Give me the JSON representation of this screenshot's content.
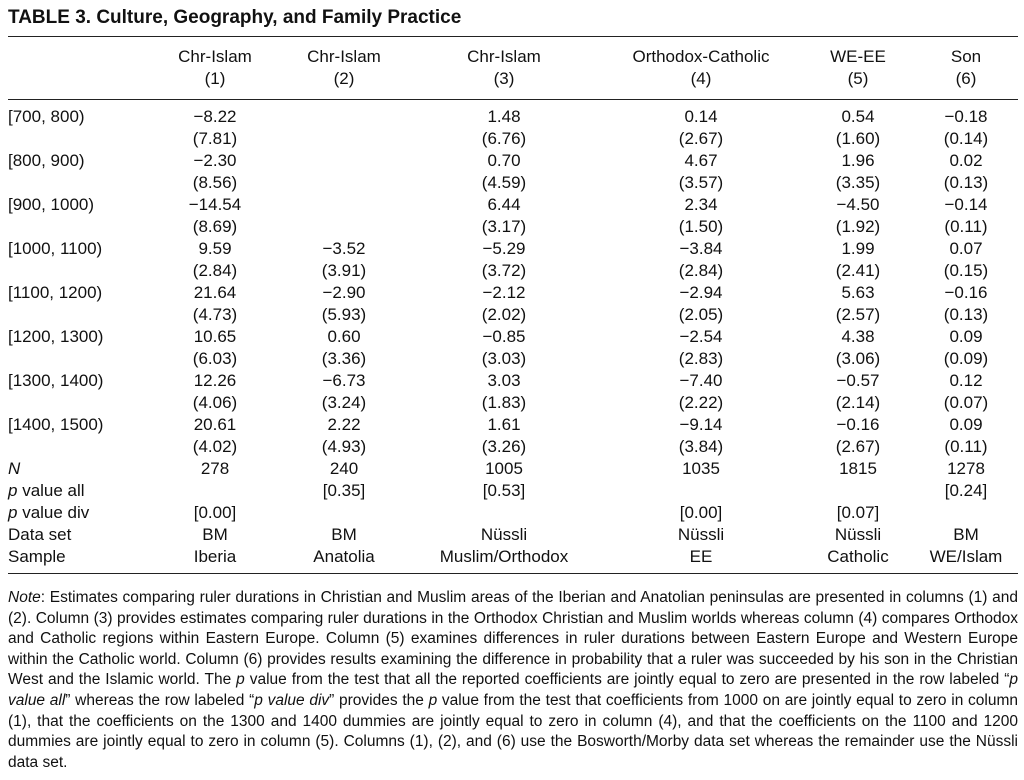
{
  "title": "TABLE 3.   Culture, Geography, and Family Practice",
  "columns": [
    {
      "name": "Chr-Islam",
      "num": "(1)"
    },
    {
      "name": "Chr-Islam",
      "num": "(2)"
    },
    {
      "name": "Chr-Islam",
      "num": "(3)"
    },
    {
      "name": "Orthodox-Catholic",
      "num": "(4)"
    },
    {
      "name": "WE-EE",
      "num": "(5)"
    },
    {
      "name": "Son",
      "num": "(6)"
    }
  ],
  "rows": [
    {
      "label": "[700, 800)",
      "coef": [
        "−8.22",
        "",
        "1.48",
        "0.14",
        "0.54",
        "−0.18"
      ],
      "se": [
        "(7.81)",
        "",
        "(6.76)",
        "(2.67)",
        "(1.60)",
        "(0.14)"
      ]
    },
    {
      "label": "[800, 900)",
      "coef": [
        "−2.30",
        "",
        "0.70",
        "4.67",
        "1.96",
        "0.02"
      ],
      "se": [
        "(8.56)",
        "",
        "(4.59)",
        "(3.57)",
        "(3.35)",
        "(0.13)"
      ]
    },
    {
      "label": "[900, 1000)",
      "coef": [
        "−14.54",
        "",
        "6.44",
        "2.34",
        "−4.50",
        "−0.14"
      ],
      "se": [
        "(8.69)",
        "",
        "(3.17)",
        "(1.50)",
        "(1.92)",
        "(0.11)"
      ]
    },
    {
      "label": "[1000, 1100)",
      "coef": [
        "9.59",
        "−3.52",
        "−5.29",
        "−3.84",
        "1.99",
        "0.07"
      ],
      "se": [
        "(2.84)",
        "(3.91)",
        "(3.72)",
        "(2.84)",
        "(2.41)",
        "(0.15)"
      ]
    },
    {
      "label": "[1100, 1200)",
      "coef": [
        "21.64",
        "−2.90",
        "−2.12",
        "−2.94",
        "5.63",
        "−0.16"
      ],
      "se": [
        "(4.73)",
        "(5.93)",
        "(2.02)",
        "(2.05)",
        "(2.57)",
        "(0.13)"
      ]
    },
    {
      "label": "[1200, 1300)",
      "coef": [
        "10.65",
        "0.60",
        "−0.85",
        "−2.54",
        "4.38",
        "0.09"
      ],
      "se": [
        "(6.03)",
        "(3.36)",
        "(3.03)",
        "(2.83)",
        "(3.06)",
        "(0.09)"
      ]
    },
    {
      "label": "[1300, 1400)",
      "coef": [
        "12.26",
        "−6.73",
        "3.03",
        "−7.40",
        "−0.57",
        "0.12"
      ],
      "se": [
        "(4.06)",
        "(3.24)",
        "(1.83)",
        "(2.22)",
        "(2.14)",
        "(0.07)"
      ]
    },
    {
      "label": "[1400, 1500)",
      "coef": [
        "20.61",
        "2.22",
        "1.61",
        "−9.14",
        "−0.16",
        "0.09"
      ],
      "se": [
        "(4.02)",
        "(4.93)",
        "(3.26)",
        "(3.84)",
        "(2.67)",
        "(0.11)"
      ]
    }
  ],
  "stats": [
    {
      "label": "N",
      "values": [
        "278",
        "240",
        "1005",
        "1035",
        "1815",
        "1278"
      ]
    },
    {
      "label_ital": "p",
      "label_rest": " value all",
      "values": [
        "",
        "[0.35]",
        "[0.53]",
        "",
        "",
        "[0.24]"
      ]
    },
    {
      "label_ital": "p",
      "label_rest": " value div",
      "values": [
        "[0.00]",
        "",
        "",
        "[0.00]",
        "[0.07]",
        ""
      ]
    },
    {
      "label": "Data set",
      "values": [
        "BM",
        "BM",
        "Nüssli",
        "Nüssli",
        "Nüssli",
        "BM"
      ]
    },
    {
      "label": "Sample",
      "values": [
        "Iberia",
        "Anatolia",
        "Muslim/Orthodox",
        "EE",
        "Catholic",
        "WE/Islam"
      ]
    }
  ],
  "note": {
    "lead": "Note",
    "s1": ": Estimates comparing ruler durations in Christian and Muslim areas of the Iberian and Anatolian peninsulas are presented in columns (1) and (2). Column (3) provides estimates comparing ruler durations in the Orthodox Christian and Muslim worlds whereas column (4) compares Orthodox and Catholic regions within Eastern Europe. Column (5) examines differences in ruler durations between Eastern Europe and Western Europe within the Catholic world. Column (6) provides results examining the difference in probability that a ruler was succeeded by his son in the Christian West and the Islamic world. The ",
    "p1": "p",
    "s2": " value from the test that all the reported coefficients are jointly equal to zero are presented in the row labeled “",
    "p2": "p value all",
    "s3": "” whereas the row labeled “",
    "p3": "p value div",
    "s4": "” provides the ",
    "p4": "p",
    "s5": " value from the test that coefficients from 1000 on are jointly equal to zero in column (1), that the coefficients on the 1300 and 1400 dummies are jointly equal to zero in column (4), and that the coefficients on the 1100 and 1200 dummies are jointly equal to zero in column (5). Columns (1), (2), and (6) use the Bosworth/Morby data set whereas the remainder use the Nüssli data set."
  }
}
